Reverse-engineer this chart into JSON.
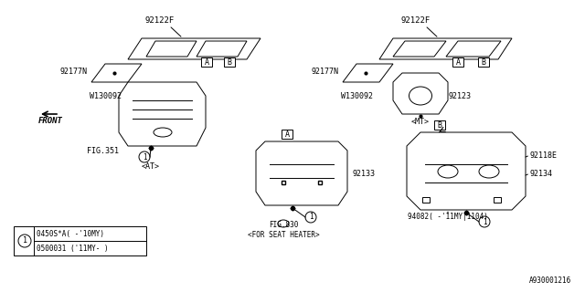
{
  "bg_color": "#ffffff",
  "line_color": "#000000",
  "figure_id": "A930001216",
  "title": "",
  "parts": {
    "92122F_left": "92122F",
    "92122F_right": "92122F",
    "92177N_left": "92177N",
    "92177N_right": "92177N",
    "W130092_left": "W130092",
    "W130092_right": "W130092",
    "FIG351": "FIG.351",
    "AT": "<AT>",
    "MT": "<MT>",
    "92123": "92123",
    "92118E": "92118E",
    "92134": "92134",
    "92133": "92133",
    "94082": "94082(−'11MY|1104)",
    "FIG830": "FIG.830\n<FOR SEAT HEATER>",
    "FRONT": "FRONT"
  },
  "legend_circle_label": "1",
  "legend_items": [
    "0450S*A( -'10MY)",
    "0500031 ('11MY- )"
  ]
}
